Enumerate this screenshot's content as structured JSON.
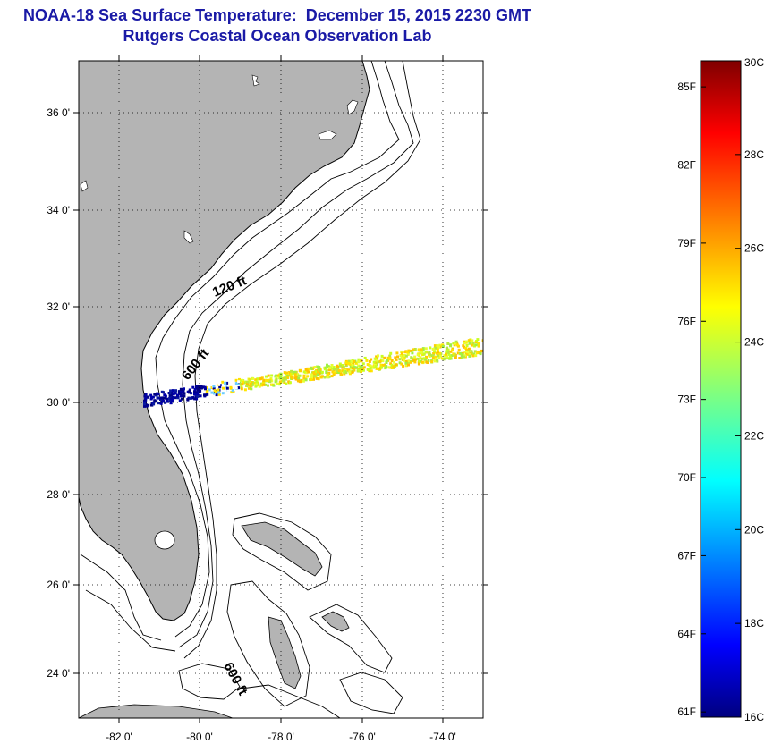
{
  "header": {
    "title": "NOAA-18 Sea Surface Temperature:  December 15, 2015 2230 GMT",
    "subtitle": "Rutgers Coastal Ocean Observation Lab"
  },
  "map": {
    "lat_range": [
      23,
      37.1
    ],
    "lon_range": [
      -83,
      -73
    ],
    "lat_ticks": [
      "24 0'",
      "26 0'",
      "28 0'",
      "30 0'",
      "32 0'",
      "34 0'",
      "36 0'"
    ],
    "lon_ticks": [
      "-82 0'",
      "-80 0'",
      "-78 0'",
      "-76 0'",
      "-74 0'"
    ],
    "contour_labels": [
      "120 ft",
      "600 ft",
      "600 ft"
    ],
    "land_color": "#b4b4b4",
    "grid": "dotted"
  },
  "colorbar": {
    "fahrenheit_labels": [
      "85F",
      "82F",
      "79F",
      "76F",
      "73F",
      "70F",
      "67F",
      "64F",
      "61F"
    ],
    "celsius_labels": [
      "30C",
      "28C",
      "26C",
      "24C",
      "22C",
      "20C",
      "18C",
      "16C"
    ],
    "range_c": [
      16,
      30
    ],
    "colormap": "jet"
  }
}
